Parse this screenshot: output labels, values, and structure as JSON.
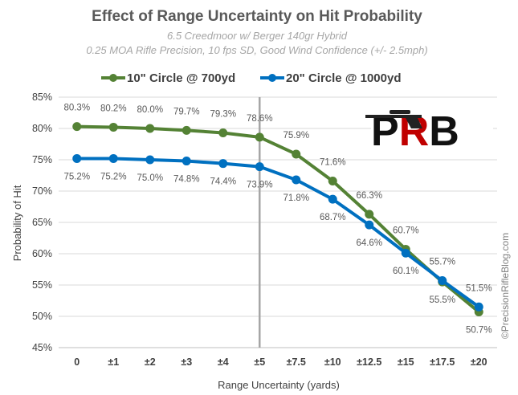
{
  "chart_data": {
    "type": "line",
    "title": "Effect of Range Uncertainty on Hit Probability",
    "subtitle_lines": [
      "6.5 Creedmoor w/ Berger 140gr Hybrid",
      "0.25 MOA Rifle Precision, 10 fps SD, Good Wind Confidence (+/- 2.5mph)"
    ],
    "xlabel": "Range Uncertainty (yards)",
    "ylabel": "Probability of Hit",
    "categories": [
      "0",
      "±1",
      "±2",
      "±3",
      "±4",
      "±5",
      "±7.5",
      "±10",
      "±12.5",
      "±15",
      "±17.5",
      "±20"
    ],
    "ylim": [
      45,
      85
    ],
    "yticks": [
      45,
      50,
      55,
      60,
      65,
      70,
      75,
      80,
      85
    ],
    "ytick_labels": [
      "45%",
      "50%",
      "55%",
      "60%",
      "65%",
      "70%",
      "75%",
      "80%",
      "85%"
    ],
    "series": [
      {
        "name": "10\" Circle @ 700yd",
        "color": "#548235",
        "values": [
          80.3,
          80.2,
          80.0,
          79.7,
          79.3,
          78.6,
          75.9,
          71.6,
          66.3,
          60.7,
          55.5,
          50.7
        ],
        "labels": [
          "80.3%",
          "80.2%",
          "80.0%",
          "79.7%",
          "79.3%",
          "78.6%",
          "75.9%",
          "71.6%",
          "66.3%",
          "60.7%",
          "55.5%",
          "50.7%"
        ]
      },
      {
        "name": "20\" Circle @ 1000yd",
        "color": "#0070c0",
        "values": [
          75.2,
          75.2,
          75.0,
          74.8,
          74.4,
          73.9,
          71.8,
          68.7,
          64.6,
          60.1,
          55.7,
          51.5
        ],
        "labels": [
          "75.2%",
          "75.2%",
          "75.0%",
          "74.8%",
          "74.4%",
          "73.9%",
          "71.8%",
          "68.7%",
          "64.6%",
          "60.1%",
          "55.7%",
          "51.5%"
        ]
      }
    ],
    "reference_line": {
      "category": "±5",
      "color": "#a6a6a6"
    },
    "legend_position": "top",
    "grid": true
  },
  "logo": {
    "text": "PRB",
    "colors": [
      "#c00000",
      "#111111"
    ]
  },
  "watermark": "©PrecisionRifleBlog.com"
}
